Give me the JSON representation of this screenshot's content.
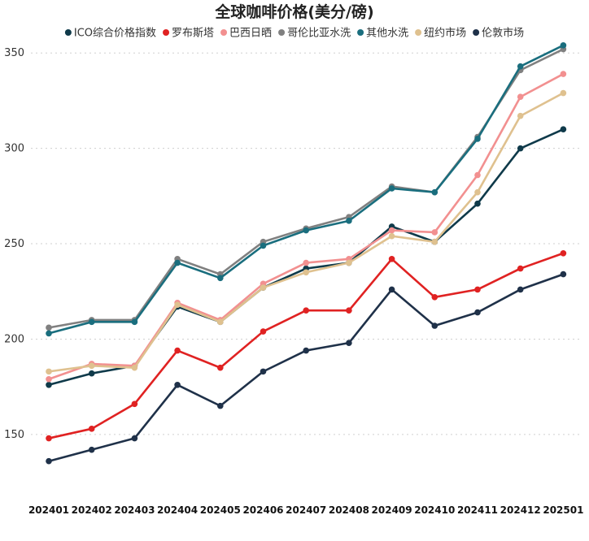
{
  "chart_data": {
    "type": "line",
    "title": "全球咖啡价格(美分/磅)",
    "xlabel": "",
    "ylabel": "",
    "ylim": [
      118,
      365
    ],
    "yticks": [
      150,
      200,
      250,
      300,
      350
    ],
    "grid": true,
    "legend_position": "top",
    "categories": [
      "202401",
      "202402",
      "202403",
      "202404",
      "202405",
      "202406",
      "202407",
      "202408",
      "202409",
      "202410",
      "202411",
      "202412",
      "202501"
    ],
    "series": [
      {
        "name": "ICO综合价格指数",
        "color": "#0f3a4a",
        "values": [
          176,
          182,
          186,
          217,
          209,
          227,
          237,
          240,
          259,
          251,
          271,
          300,
          310
        ]
      },
      {
        "name": "罗布斯塔",
        "color": "#e02222",
        "values": [
          148,
          153,
          166,
          194,
          185,
          204,
          215,
          215,
          242,
          222,
          226,
          237,
          245
        ]
      },
      {
        "name": "巴西日晒",
        "color": "#f29090",
        "values": [
          179,
          187,
          186,
          219,
          210,
          229,
          240,
          242,
          257,
          256,
          286,
          327,
          339
        ]
      },
      {
        "name": "哥伦比亚水洗",
        "color": "#808080",
        "values": [
          206,
          210,
          210,
          242,
          234,
          251,
          258,
          264,
          280,
          277,
          306,
          341,
          352
        ]
      },
      {
        "name": "其他水洗",
        "color": "#1a6e7e",
        "values": [
          203,
          209,
          209,
          240,
          232,
          249,
          257,
          262,
          279,
          277,
          305,
          343,
          354
        ]
      },
      {
        "name": "纽约市场",
        "color": "#dfc18f",
        "values": [
          183,
          186,
          185,
          218,
          209,
          227,
          235,
          240,
          254,
          251,
          277,
          317,
          329
        ]
      },
      {
        "name": "伦敦市场",
        "color": "#1f3149",
        "values": [
          136,
          142,
          148,
          176,
          165,
          183,
          194,
          198,
          226,
          207,
          214,
          226,
          234
        ]
      }
    ]
  }
}
